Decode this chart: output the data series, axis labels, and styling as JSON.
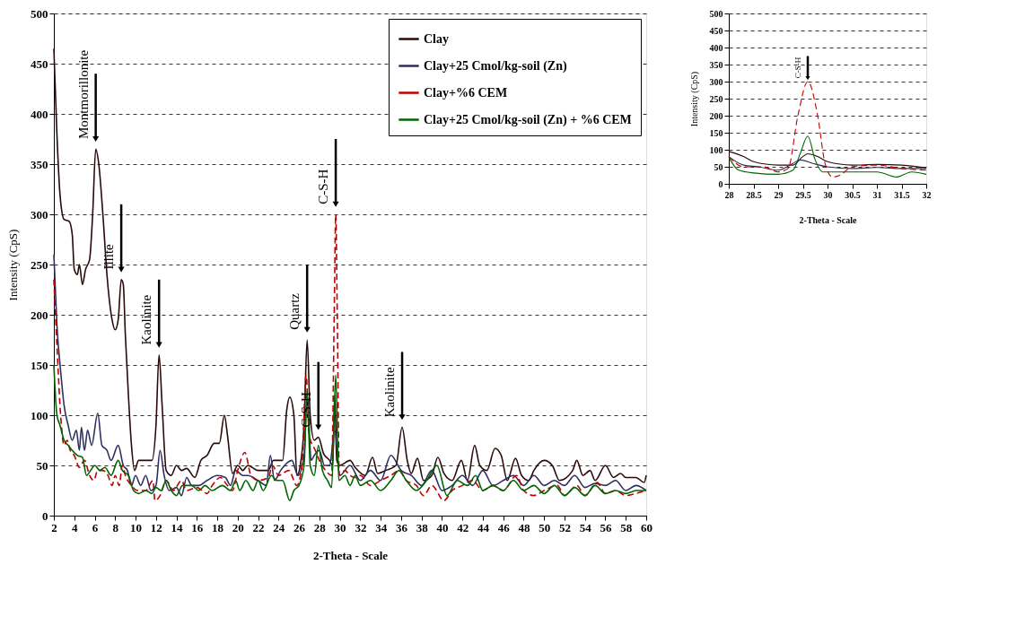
{
  "chart_data": [
    {
      "type": "line",
      "xlabel": "2-Theta - Scale",
      "ylabel": "Intensity (CpS)",
      "xlim": [
        2,
        60
      ],
      "ylim": [
        0,
        500
      ],
      "xticks": [
        2,
        4,
        6,
        8,
        10,
        12,
        14,
        16,
        18,
        20,
        22,
        24,
        26,
        28,
        30,
        32,
        34,
        36,
        38,
        40,
        42,
        44,
        46,
        48,
        50,
        52,
        54,
        56,
        58,
        60
      ],
      "yticks": [
        0,
        50,
        100,
        150,
        200,
        250,
        300,
        350,
        400,
        450,
        500
      ],
      "grid": "y",
      "legend": "top right",
      "series": [
        {
          "name": "Clay",
          "color": "#2a0a0a",
          "line_style": "solid",
          "x": [
            2,
            2.3,
            2.6,
            3,
            3.5,
            3.8,
            4,
            4.3,
            4.5,
            4.8,
            5.1,
            5.5,
            5.8,
            6.1,
            6.4,
            6.8,
            7.2,
            7.7,
            8,
            8.3,
            8.6,
            8.8,
            9,
            9.3,
            9.6,
            9.9,
            10.3,
            11,
            11.6,
            12,
            12.3,
            12.6,
            13,
            13.5,
            14,
            14.5,
            15,
            15.8,
            16.4,
            17,
            17.7,
            18.2,
            18.7,
            19,
            19.5,
            20,
            20.5,
            21,
            22,
            23,
            23.5,
            24.4,
            24.8,
            25.1,
            25.5,
            25.8,
            26.2,
            26.5,
            26.8,
            27.1,
            27.5,
            27.9,
            28.4,
            29,
            29.3,
            29.5,
            29.7,
            30,
            31,
            31.5,
            32.5,
            33.2,
            33.7,
            34.5,
            35.5,
            36.1,
            36.6,
            37,
            37.6,
            38.2,
            39,
            39.6,
            40.2,
            41,
            41.9,
            42.5,
            43.2,
            43.7,
            44.4,
            45.2,
            45.8,
            46.4,
            47.2,
            47.8,
            48.5,
            49,
            50,
            50.8,
            51.5,
            52.8,
            53.2,
            53.8,
            54.5,
            55,
            56,
            56.8,
            57.5,
            58,
            59,
            59.8,
            60
          ],
          "values": [
            465,
            380,
            320,
            295,
            293,
            280,
            245,
            240,
            250,
            230,
            245,
            255,
            300,
            365,
            350,
            300,
            240,
            195,
            185,
            195,
            235,
            230,
            180,
            120,
            70,
            45,
            55,
            55,
            55,
            90,
            160,
            110,
            45,
            40,
            50,
            45,
            47,
            38,
            55,
            60,
            72,
            72,
            100,
            80,
            42,
            50,
            45,
            50,
            45,
            45,
            55,
            55,
            105,
            118,
            100,
            40,
            55,
            90,
            175,
            100,
            75,
            78,
            62,
            55,
            50,
            120,
            55,
            50,
            55,
            48,
            40,
            58,
            42,
            45,
            50,
            88,
            55,
            42,
            57,
            35,
            40,
            58,
            42,
            35,
            55,
            35,
            70,
            50,
            45,
            67,
            60,
            35,
            57,
            40,
            35,
            45,
            55,
            50,
            35,
            45,
            55,
            40,
            45,
            35,
            50,
            38,
            42,
            38,
            38,
            33,
            40
          ]
        },
        {
          "name": "Clay+25 Cmol/kg-soil (Zn)",
          "color": "#2f2f5f",
          "line_style": "solid",
          "x": [
            2,
            2.3,
            2.7,
            3,
            3.4,
            3.8,
            4.2,
            4.5,
            4.7,
            5,
            5.3,
            5.7,
            6.3,
            6.7,
            7.2,
            7.6,
            8.3,
            8.8,
            9.2,
            9.6,
            10,
            10.5,
            11,
            11.5,
            12,
            12.4,
            12.8,
            13.3,
            14,
            14.5,
            15,
            15.5,
            16.2,
            17,
            18,
            18.8,
            19.3,
            19.8,
            20.5,
            21,
            22,
            22.8,
            23.2,
            23.6,
            24.2,
            25.3,
            25.9,
            26.5,
            26.8,
            27.2,
            27.5,
            28,
            28.5,
            29,
            29.5,
            30,
            31,
            32,
            33,
            34,
            35,
            36,
            37,
            38,
            39,
            40,
            41,
            42,
            43,
            44,
            45,
            46,
            47,
            48,
            49,
            50,
            51,
            52,
            53,
            54,
            55,
            56,
            57,
            58,
            59,
            60
          ],
          "values": [
            260,
            190,
            140,
            110,
            90,
            75,
            85,
            65,
            88,
            65,
            85,
            70,
            102,
            70,
            65,
            55,
            70,
            50,
            45,
            30,
            40,
            30,
            40,
            25,
            30,
            65,
            40,
            25,
            28,
            20,
            38,
            30,
            30,
            35,
            40,
            38,
            30,
            45,
            40,
            40,
            35,
            30,
            60,
            35,
            45,
            55,
            40,
            60,
            120,
            55,
            60,
            65,
            50,
            50,
            85,
            40,
            50,
            35,
            45,
            35,
            60,
            45,
            40,
            30,
            45,
            25,
            30,
            40,
            30,
            45,
            30,
            35,
            40,
            30,
            40,
            30,
            35,
            30,
            40,
            28,
            32,
            30,
            35,
            25,
            30,
            25
          ]
        },
        {
          "name": "Clay+%6 CEM",
          "color": "#c00000",
          "line_style": "dashed",
          "x": [
            2,
            2.3,
            2.7,
            3,
            3.3,
            3.6,
            4,
            4.5,
            5,
            5.5,
            5.9,
            6.3,
            6.8,
            7.3,
            7.7,
            8,
            8.4,
            8.7,
            9,
            9.6,
            10.2,
            11,
            11.7,
            11.9,
            12.4,
            13,
            13.7,
            14.5,
            15,
            16,
            17,
            17.5,
            18.3,
            19,
            19.5,
            20,
            20.7,
            21.3,
            22,
            23,
            23.4,
            24,
            25,
            25.8,
            26.3,
            26.7,
            27,
            27.6,
            28,
            28.6,
            29.2,
            29.45,
            29.6,
            29.75,
            29.95,
            30.5,
            31,
            31.5,
            32,
            33,
            34,
            35,
            35.8,
            36.5,
            37.5,
            38.2,
            39,
            40.2,
            41,
            42,
            43,
            44,
            45,
            46,
            47.3,
            48,
            49,
            50,
            51.3,
            52,
            53.2,
            54,
            55.2,
            56,
            57,
            58,
            59,
            60
          ],
          "values": [
            235,
            170,
            95,
            70,
            75,
            65,
            60,
            48,
            55,
            40,
            35,
            45,
            45,
            40,
            30,
            40,
            30,
            50,
            40,
            30,
            25,
            25,
            35,
            15,
            20,
            35,
            25,
            35,
            25,
            28,
            22,
            30,
            38,
            30,
            25,
            45,
            63,
            40,
            35,
            38,
            50,
            40,
            45,
            30,
            50,
            140,
            80,
            65,
            55,
            45,
            40,
            200,
            300,
            200,
            40,
            45,
            40,
            38,
            40,
            30,
            35,
            40,
            45,
            35,
            30,
            20,
            30,
            15,
            25,
            30,
            35,
            25,
            30,
            25,
            40,
            25,
            20,
            25,
            30,
            20,
            30,
            20,
            33,
            22,
            25,
            20,
            22,
            25
          ]
        },
        {
          "name": "Clay+25 Cmol/kg-soil (Zn) + %6 CEM",
          "color": "#006400",
          "line_style": "solid",
          "x": [
            2,
            2.3,
            2.6,
            3,
            3.4,
            3.8,
            4.3,
            4.8,
            5.2,
            5.6,
            6,
            6.5,
            7,
            7.6,
            8.3,
            8.7,
            9.3,
            9.8,
            10.3,
            11,
            11.6,
            12,
            12.5,
            13,
            13.5,
            14,
            14.6,
            15.5,
            16.2,
            16.8,
            17.5,
            18.5,
            19.3,
            19.8,
            20.2,
            20.8,
            21.5,
            22,
            22.5,
            23.3,
            23.8,
            24.4,
            25.1,
            25.5,
            26,
            26.5,
            26.8,
            27.1,
            27.5,
            27.9,
            28.3,
            28.8,
            29.2,
            29.6,
            29.9,
            30.5,
            31,
            31.5,
            32,
            33,
            34,
            35,
            35.8,
            36.5,
            37.5,
            38.5,
            39.5,
            40.5,
            41.5,
            42.5,
            43.3,
            44,
            45,
            46,
            47,
            48,
            49,
            50,
            51,
            52,
            53,
            54,
            55,
            56,
            57,
            58,
            59,
            60
          ],
          "values": [
            150,
            100,
            90,
            75,
            70,
            65,
            60,
            58,
            40,
            45,
            50,
            45,
            48,
            40,
            55,
            45,
            40,
            25,
            22,
            25,
            22,
            28,
            25,
            35,
            25,
            20,
            30,
            30,
            25,
            30,
            25,
            30,
            25,
            35,
            25,
            35,
            25,
            35,
            25,
            40,
            35,
            35,
            15,
            25,
            30,
            50,
            125,
            50,
            40,
            70,
            45,
            35,
            28,
            140,
            35,
            40,
            30,
            40,
            30,
            35,
            25,
            35,
            45,
            35,
            25,
            35,
            50,
            20,
            35,
            30,
            40,
            25,
            30,
            25,
            35,
            25,
            30,
            22,
            30,
            20,
            28,
            20,
            30,
            22,
            25,
            22,
            25,
            25
          ]
        }
      ],
      "annotations": [
        {
          "text": "Montmorillonite",
          "x": 6.1,
          "y": 365
        },
        {
          "text": "Illite",
          "x": 8.6,
          "y": 235
        },
        {
          "text": "Kaolinite",
          "x": 12.3,
          "y": 160
        },
        {
          "text": "Quartz",
          "x": 26.8,
          "y": 175
        },
        {
          "text": "C-S-H",
          "x": 27.9,
          "y": 78
        },
        {
          "text": "C-S-H",
          "x": 29.6,
          "y": 300
        },
        {
          "text": "Kaolinite",
          "x": 36.1,
          "y": 88
        }
      ]
    },
    {
      "type": "line",
      "xlabel": "2-Theta - Scale",
      "ylabel": "Intensity (CpS)",
      "xlim": [
        28,
        32
      ],
      "ylim": [
        0,
        500
      ],
      "xticks": [
        28,
        28.5,
        29,
        29.5,
        30,
        30.5,
        31,
        31.5,
        32
      ],
      "yticks": [
        0,
        50,
        100,
        150,
        200,
        250,
        300,
        350,
        400,
        450,
        500
      ],
      "grid": "y",
      "series": [
        {
          "color": "#2a0a0a",
          "line_style": "solid",
          "x": [
            28,
            28.3,
            28.5,
            29,
            29.3,
            29.5,
            29.6,
            29.8,
            30,
            30.5,
            31,
            31.5,
            32
          ],
          "values": [
            95,
            80,
            65,
            55,
            55,
            80,
            88,
            80,
            65,
            55,
            57,
            55,
            47
          ]
        },
        {
          "color": "#2f2f5f",
          "line_style": "solid",
          "x": [
            28,
            28.3,
            28.6,
            29,
            29.3,
            29.45,
            29.7,
            30,
            30.5,
            31,
            31.5,
            32
          ],
          "values": [
            80,
            55,
            50,
            40,
            60,
            70,
            60,
            50,
            45,
            48,
            45,
            45
          ]
        },
        {
          "color": "#c00000",
          "line_style": "dashed",
          "x": [
            28,
            28.3,
            28.7,
            29,
            29.2,
            29.4,
            29.6,
            29.8,
            29.95,
            30.1,
            30.25,
            30.5,
            31,
            31.5,
            32
          ],
          "values": [
            80,
            50,
            50,
            35,
            45,
            200,
            300,
            200,
            60,
            20,
            25,
            50,
            55,
            45,
            40
          ]
        },
        {
          "color": "#006400",
          "line_style": "solid",
          "x": [
            28,
            28.2,
            28.5,
            29,
            29.3,
            29.45,
            29.6,
            29.75,
            29.9,
            30.5,
            31,
            31.4,
            31.7,
            32
          ],
          "values": [
            78,
            40,
            32,
            28,
            40,
            90,
            140,
            70,
            35,
            35,
            35,
            20,
            35,
            28
          ]
        }
      ],
      "annotations": [
        {
          "text": "C-S-H",
          "x": 29.6,
          "y": 300
        }
      ]
    }
  ]
}
